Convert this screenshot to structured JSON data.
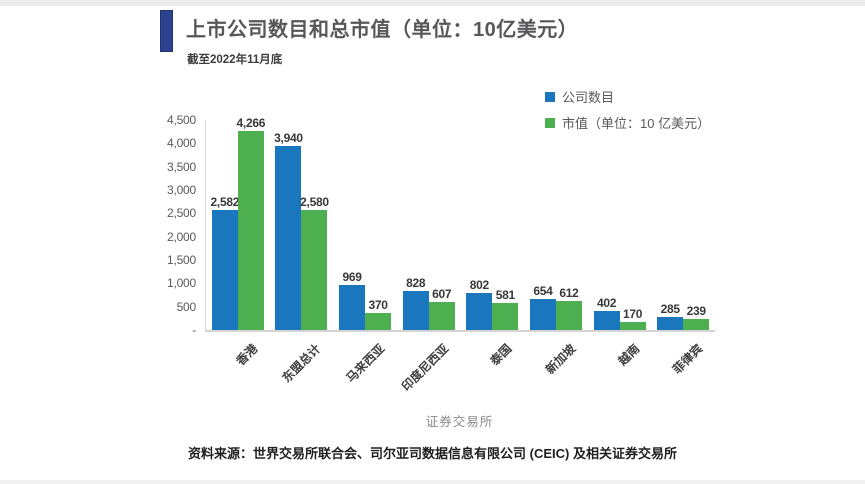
{
  "page": {
    "title": "上市公司数目和总市值（单位：10亿美元）",
    "subtitle": "截至2022年11月底",
    "source": "资料来源：世界交易所联合会、司尔亚司数据信息有限公司 (CEIC) 及相关证券交易所"
  },
  "colors": {
    "accent_bar": "#2c418f",
    "companies_blue": "#1b77bd",
    "marketcap_green": "#4daf4f",
    "axis_line": "#d9d9d9"
  },
  "chart_data": {
    "type": "bar",
    "title": "上市公司数目和总市值（单位：10亿美元）",
    "subtitle": "截至2022年11月底",
    "categories": [
      "香港",
      "东盟总计",
      "马来西亚",
      "印度尼西亚",
      "泰国",
      "新加坡",
      "越南",
      "菲律宾"
    ],
    "series": [
      {
        "key": "companies",
        "name": "公司数目",
        "color": "#1b77bd",
        "values": [
          2582,
          3940,
          969,
          828,
          802,
          654,
          402,
          285
        ]
      },
      {
        "key": "marketcap",
        "name": "市值（单位：10 亿美元）",
        "color": "#4daf4f",
        "values": [
          4266,
          2580,
          370,
          607,
          581,
          612,
          170,
          239
        ]
      }
    ],
    "xlabel": "证券交易所",
    "ylabel": "",
    "ylim": [
      0,
      4500
    ],
    "ytick_step": 500,
    "yticks": [
      "4,500",
      "4,000",
      "3,500",
      "3,000",
      "2,500",
      "2,000",
      "1,500",
      "1,000",
      "500",
      "-"
    ],
    "grid": false,
    "legend_position": "top-right",
    "data_labels": true
  }
}
